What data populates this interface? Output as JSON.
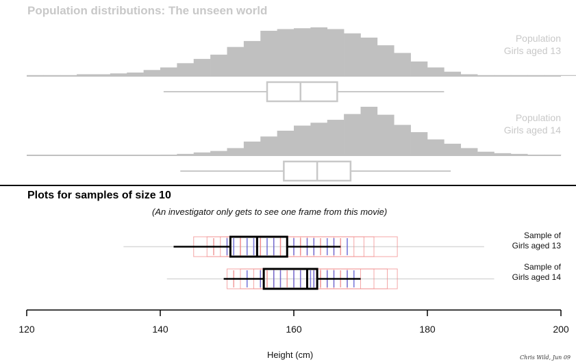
{
  "chart_data": {
    "type": "histogram-boxplot",
    "title": "Population distributions: The unseen world",
    "population_panels": [
      {
        "name": "Population Girls aged 13",
        "label_lines": [
          "Population",
          "Girls aged 13"
        ],
        "bin_width": 2.5,
        "bin_start": 120,
        "histogram_counts": [
          1,
          1,
          1,
          2,
          2,
          3,
          4,
          7,
          10,
          15,
          20,
          25,
          34,
          41,
          53,
          55,
          56,
          57,
          55,
          50,
          45,
          36,
          27,
          17,
          10,
          5,
          2,
          1,
          1,
          1,
          1,
          1,
          1,
          1,
          1,
          1
        ],
        "boxplot": {
          "whisker_low": 140.5,
          "q1": 156,
          "median": 161,
          "q3": 166.5,
          "whisker_high": 182.5
        }
      },
      {
        "name": "Population Girls aged 14",
        "label_lines": [
          "Population",
          "Girls aged 14"
        ],
        "bin_width": 2.5,
        "bin_start": 120,
        "histogram_counts": [
          0,
          0,
          0,
          0,
          0,
          0,
          0,
          0,
          1,
          2,
          4,
          6,
          10,
          19,
          26,
          34,
          41,
          45,
          49,
          57,
          67,
          56,
          42,
          32,
          22,
          16,
          10,
          5,
          3,
          2,
          1,
          1,
          0,
          0,
          0,
          0
        ],
        "boxplot": {
          "whisker_low": 143,
          "q1": 158.5,
          "median": 163.5,
          "q3": 168.5,
          "whisker_high": 183.5
        }
      }
    ],
    "sample_title": "Plots for samples of size 10",
    "sample_subtitle": "(An investigator only gets to see one frame from this movie)",
    "sample_panels": [
      {
        "name": "Sample of Girls aged 13",
        "label_lines": [
          "Sample of",
          "Girls aged 13"
        ],
        "boxplot": {
          "whisker_low": 142,
          "q1": 150.5,
          "median": 154.5,
          "q3": 159,
          "whisker_high": 167
        },
        "ghost_range": [
          134.5,
          188.5
        ],
        "ghost_boxes": [
          [
            145,
            152
          ],
          [
            147,
            155
          ],
          [
            149,
            158
          ],
          [
            150,
            161
          ],
          [
            152,
            163
          ],
          [
            155,
            166
          ],
          [
            157,
            169
          ],
          [
            160,
            170.5
          ],
          [
            162,
            172
          ],
          [
            158,
            175.5
          ]
        ],
        "ticks": [
          148,
          150,
          151,
          152,
          153,
          154,
          155,
          156,
          157,
          158,
          159,
          160,
          161,
          162,
          163,
          164,
          165,
          166,
          167,
          168
        ]
      },
      {
        "name": "Sample of Girls aged 14",
        "label_lines": [
          "Sample of",
          "Girls aged 14"
        ],
        "boxplot": {
          "whisker_low": 149.5,
          "q1": 155.5,
          "median": 162,
          "q3": 163.5,
          "whisker_high": 170
        },
        "ghost_range": [
          141,
          190
        ],
        "ghost_boxes": [
          [
            150,
            157
          ],
          [
            152,
            160
          ],
          [
            154,
            162
          ],
          [
            155,
            164
          ],
          [
            157,
            166
          ],
          [
            158,
            168
          ],
          [
            160,
            170
          ],
          [
            161,
            172
          ],
          [
            163,
            174
          ],
          [
            165,
            175.5
          ]
        ],
        "ticks": [
          151,
          153,
          155,
          156,
          157,
          158,
          159,
          160,
          161,
          162,
          162.5,
          163,
          164,
          165,
          166,
          167,
          168,
          169
        ]
      }
    ],
    "x_axis": {
      "label": "Height (cm)",
      "range": [
        120,
        200
      ],
      "ticks": [
        120,
        140,
        160,
        180,
        200
      ],
      "tick_labels": [
        "120",
        "140",
        "160",
        "180",
        "200"
      ]
    },
    "colors": {
      "population": "#c0c0c0",
      "population_box": "#c8c8c8",
      "ghost_red": "#f08a8a",
      "ghost_blue": "#5a5ad2",
      "sample_box": "#000000",
      "axis": "#000000"
    },
    "signature": "Chris Wild, Jun 09"
  }
}
